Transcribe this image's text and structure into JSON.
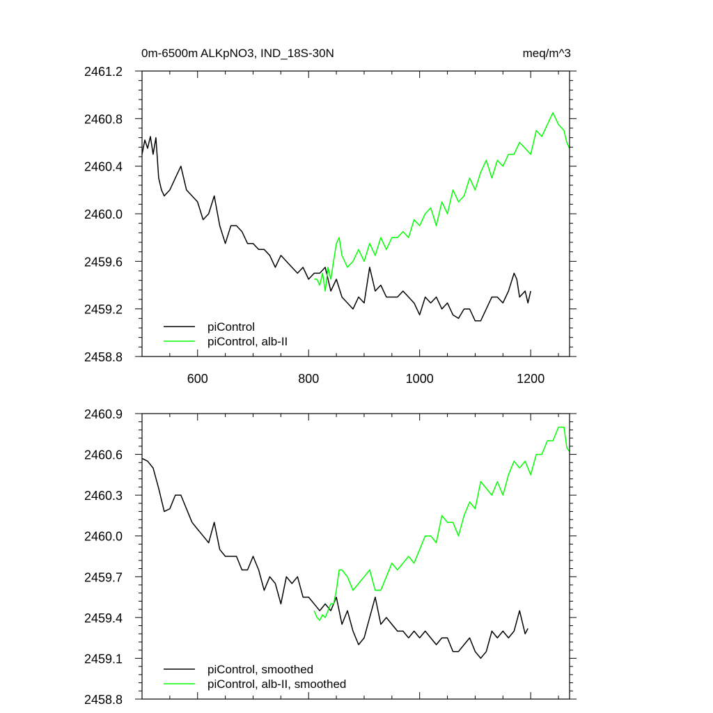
{
  "chart_data": [
    {
      "type": "line",
      "title": "0m-6500m ALKpNO3, IND_18S-30N",
      "units": "meq/m^3",
      "xlim": [
        500,
        1270
      ],
      "ylim": [
        2458.8,
        2461.2
      ],
      "x_ticks": [
        600,
        800,
        1000,
        1200
      ],
      "x_tick_labels": [
        "600",
        "800",
        "1000",
        "1200"
      ],
      "y_ticks": [
        2458.8,
        2459.2,
        2459.6,
        2460.0,
        2460.4,
        2460.8,
        2461.2
      ],
      "y_tick_labels": [
        "2458.8",
        "2459.2",
        "2459.6",
        "2460.0",
        "2460.4",
        "2460.8",
        "2461.2"
      ],
      "legend_position": "bottom-left",
      "series": [
        {
          "name": "piControl",
          "color": "#000000",
          "x": [
            500,
            505,
            510,
            515,
            520,
            525,
            530,
            535,
            540,
            550,
            560,
            570,
            580,
            590,
            600,
            610,
            620,
            630,
            640,
            650,
            660,
            670,
            680,
            690,
            700,
            710,
            720,
            730,
            740,
            750,
            760,
            770,
            780,
            790,
            800,
            810,
            820,
            830,
            840,
            850,
            860,
            870,
            880,
            890,
            900,
            910,
            920,
            930,
            940,
            950,
            960,
            970,
            980,
            990,
            1000,
            1010,
            1020,
            1030,
            1040,
            1050,
            1060,
            1070,
            1080,
            1090,
            1100,
            1110,
            1120,
            1130,
            1140,
            1150,
            1160,
            1170,
            1175,
            1180,
            1190,
            1195,
            1200
          ],
          "y": [
            2460.5,
            2460.62,
            2460.55,
            2460.65,
            2460.5,
            2460.64,
            2460.3,
            2460.2,
            2460.15,
            2460.2,
            2460.3,
            2460.4,
            2460.2,
            2460.15,
            2460.1,
            2459.95,
            2460.0,
            2460.15,
            2459.9,
            2459.75,
            2459.9,
            2459.9,
            2459.85,
            2459.75,
            2459.75,
            2459.7,
            2459.7,
            2459.65,
            2459.55,
            2459.65,
            2459.6,
            2459.55,
            2459.5,
            2459.55,
            2459.45,
            2459.5,
            2459.5,
            2459.55,
            2459.35,
            2459.45,
            2459.3,
            2459.25,
            2459.2,
            2459.3,
            2459.25,
            2459.55,
            2459.35,
            2459.4,
            2459.3,
            2459.3,
            2459.3,
            2459.35,
            2459.3,
            2459.25,
            2459.15,
            2459.3,
            2459.25,
            2459.3,
            2459.2,
            2459.25,
            2459.15,
            2459.12,
            2459.2,
            2459.2,
            2459.1,
            2459.1,
            2459.2,
            2459.3,
            2459.3,
            2459.25,
            2459.35,
            2459.5,
            2459.45,
            2459.3,
            2459.35,
            2459.25,
            2459.35
          ]
        },
        {
          "name": "piControl, alb-II",
          "color": "#00ff00",
          "x": [
            810,
            815,
            820,
            825,
            830,
            835,
            840,
            845,
            850,
            855,
            860,
            870,
            880,
            890,
            900,
            910,
            920,
            930,
            940,
            950,
            960,
            970,
            980,
            990,
            1000,
            1010,
            1020,
            1030,
            1040,
            1050,
            1060,
            1070,
            1080,
            1090,
            1100,
            1110,
            1120,
            1130,
            1140,
            1150,
            1160,
            1170,
            1180,
            1190,
            1200,
            1210,
            1220,
            1230,
            1240,
            1250,
            1260,
            1265,
            1270
          ],
          "y": [
            2459.45,
            2459.45,
            2459.4,
            2459.5,
            2459.35,
            2459.55,
            2459.45,
            2459.6,
            2459.75,
            2459.8,
            2459.65,
            2459.55,
            2459.6,
            2459.7,
            2459.6,
            2459.75,
            2459.65,
            2459.8,
            2459.7,
            2459.8,
            2459.8,
            2459.85,
            2459.8,
            2459.95,
            2459.9,
            2460.0,
            2460.05,
            2459.9,
            2460.1,
            2460.0,
            2460.2,
            2460.1,
            2460.15,
            2460.3,
            2460.2,
            2460.35,
            2460.45,
            2460.3,
            2460.45,
            2460.4,
            2460.5,
            2460.5,
            2460.6,
            2460.55,
            2460.5,
            2460.7,
            2460.65,
            2460.75,
            2460.85,
            2460.75,
            2460.7,
            2460.6,
            2460.55
          ]
        }
      ]
    },
    {
      "type": "line",
      "xlim": [
        500,
        1270
      ],
      "ylim": [
        2458.8,
        2460.9
      ],
      "x_ticks": [
        600,
        800,
        1000,
        1200
      ],
      "y_ticks": [
        2458.8,
        2459.1,
        2459.4,
        2459.7,
        2460.0,
        2460.3,
        2460.6,
        2460.9
      ],
      "y_tick_labels": [
        "2458.8",
        "2459.1",
        "2459.4",
        "2459.7",
        "2460.0",
        "2460.3",
        "2460.6",
        "2460.9"
      ],
      "legend_position": "bottom-left",
      "series": [
        {
          "name": "piControl, smoothed",
          "color": "#000000",
          "x": [
            500,
            510,
            520,
            530,
            540,
            550,
            560,
            570,
            580,
            590,
            600,
            610,
            620,
            630,
            640,
            650,
            660,
            670,
            680,
            690,
            700,
            710,
            720,
            730,
            740,
            750,
            760,
            770,
            780,
            790,
            800,
            810,
            820,
            830,
            840,
            850,
            860,
            870,
            880,
            890,
            900,
            910,
            920,
            930,
            940,
            950,
            960,
            970,
            980,
            990,
            1000,
            1010,
            1020,
            1030,
            1040,
            1050,
            1060,
            1070,
            1080,
            1090,
            1100,
            1110,
            1120,
            1130,
            1140,
            1150,
            1160,
            1170,
            1180,
            1190,
            1195
          ],
          "y": [
            2460.57,
            2460.55,
            2460.5,
            2460.35,
            2460.18,
            2460.2,
            2460.3,
            2460.3,
            2460.2,
            2460.1,
            2460.05,
            2460.0,
            2459.95,
            2460.1,
            2459.9,
            2459.85,
            2459.85,
            2459.85,
            2459.75,
            2459.75,
            2459.85,
            2459.75,
            2459.6,
            2459.7,
            2459.65,
            2459.5,
            2459.7,
            2459.65,
            2459.7,
            2459.55,
            2459.55,
            2459.5,
            2459.45,
            2459.5,
            2459.45,
            2459.55,
            2459.35,
            2459.45,
            2459.3,
            2459.2,
            2459.25,
            2459.4,
            2459.55,
            2459.35,
            2459.4,
            2459.35,
            2459.3,
            2459.3,
            2459.25,
            2459.3,
            2459.25,
            2459.3,
            2459.25,
            2459.2,
            2459.25,
            2459.25,
            2459.15,
            2459.15,
            2459.2,
            2459.25,
            2459.15,
            2459.1,
            2459.15,
            2459.3,
            2459.25,
            2459.3,
            2459.25,
            2459.3,
            2459.45,
            2459.28,
            2459.32
          ]
        },
        {
          "name": "piControl, alb-II, smoothed",
          "color": "#00ff00",
          "x": [
            810,
            815,
            820,
            825,
            830,
            835,
            840,
            845,
            850,
            855,
            860,
            870,
            880,
            890,
            900,
            910,
            920,
            930,
            940,
            950,
            960,
            970,
            980,
            990,
            1000,
            1010,
            1020,
            1030,
            1040,
            1050,
            1060,
            1070,
            1080,
            1090,
            1100,
            1110,
            1120,
            1130,
            1140,
            1150,
            1160,
            1170,
            1180,
            1190,
            1200,
            1210,
            1220,
            1230,
            1240,
            1250,
            1260,
            1265,
            1270
          ],
          "y": [
            2459.45,
            2459.4,
            2459.38,
            2459.42,
            2459.4,
            2459.45,
            2459.5,
            2459.5,
            2459.6,
            2459.75,
            2459.75,
            2459.7,
            2459.6,
            2459.65,
            2459.7,
            2459.75,
            2459.6,
            2459.6,
            2459.7,
            2459.8,
            2459.75,
            2459.8,
            2459.85,
            2459.8,
            2459.9,
            2460.0,
            2460.0,
            2459.95,
            2460.15,
            2460.1,
            2460.1,
            2460.0,
            2460.15,
            2460.25,
            2460.2,
            2460.4,
            2460.35,
            2460.3,
            2460.4,
            2460.3,
            2460.45,
            2460.55,
            2460.5,
            2460.55,
            2460.45,
            2460.6,
            2460.6,
            2460.7,
            2460.7,
            2460.8,
            2460.8,
            2460.65,
            2460.62
          ]
        }
      ]
    }
  ]
}
